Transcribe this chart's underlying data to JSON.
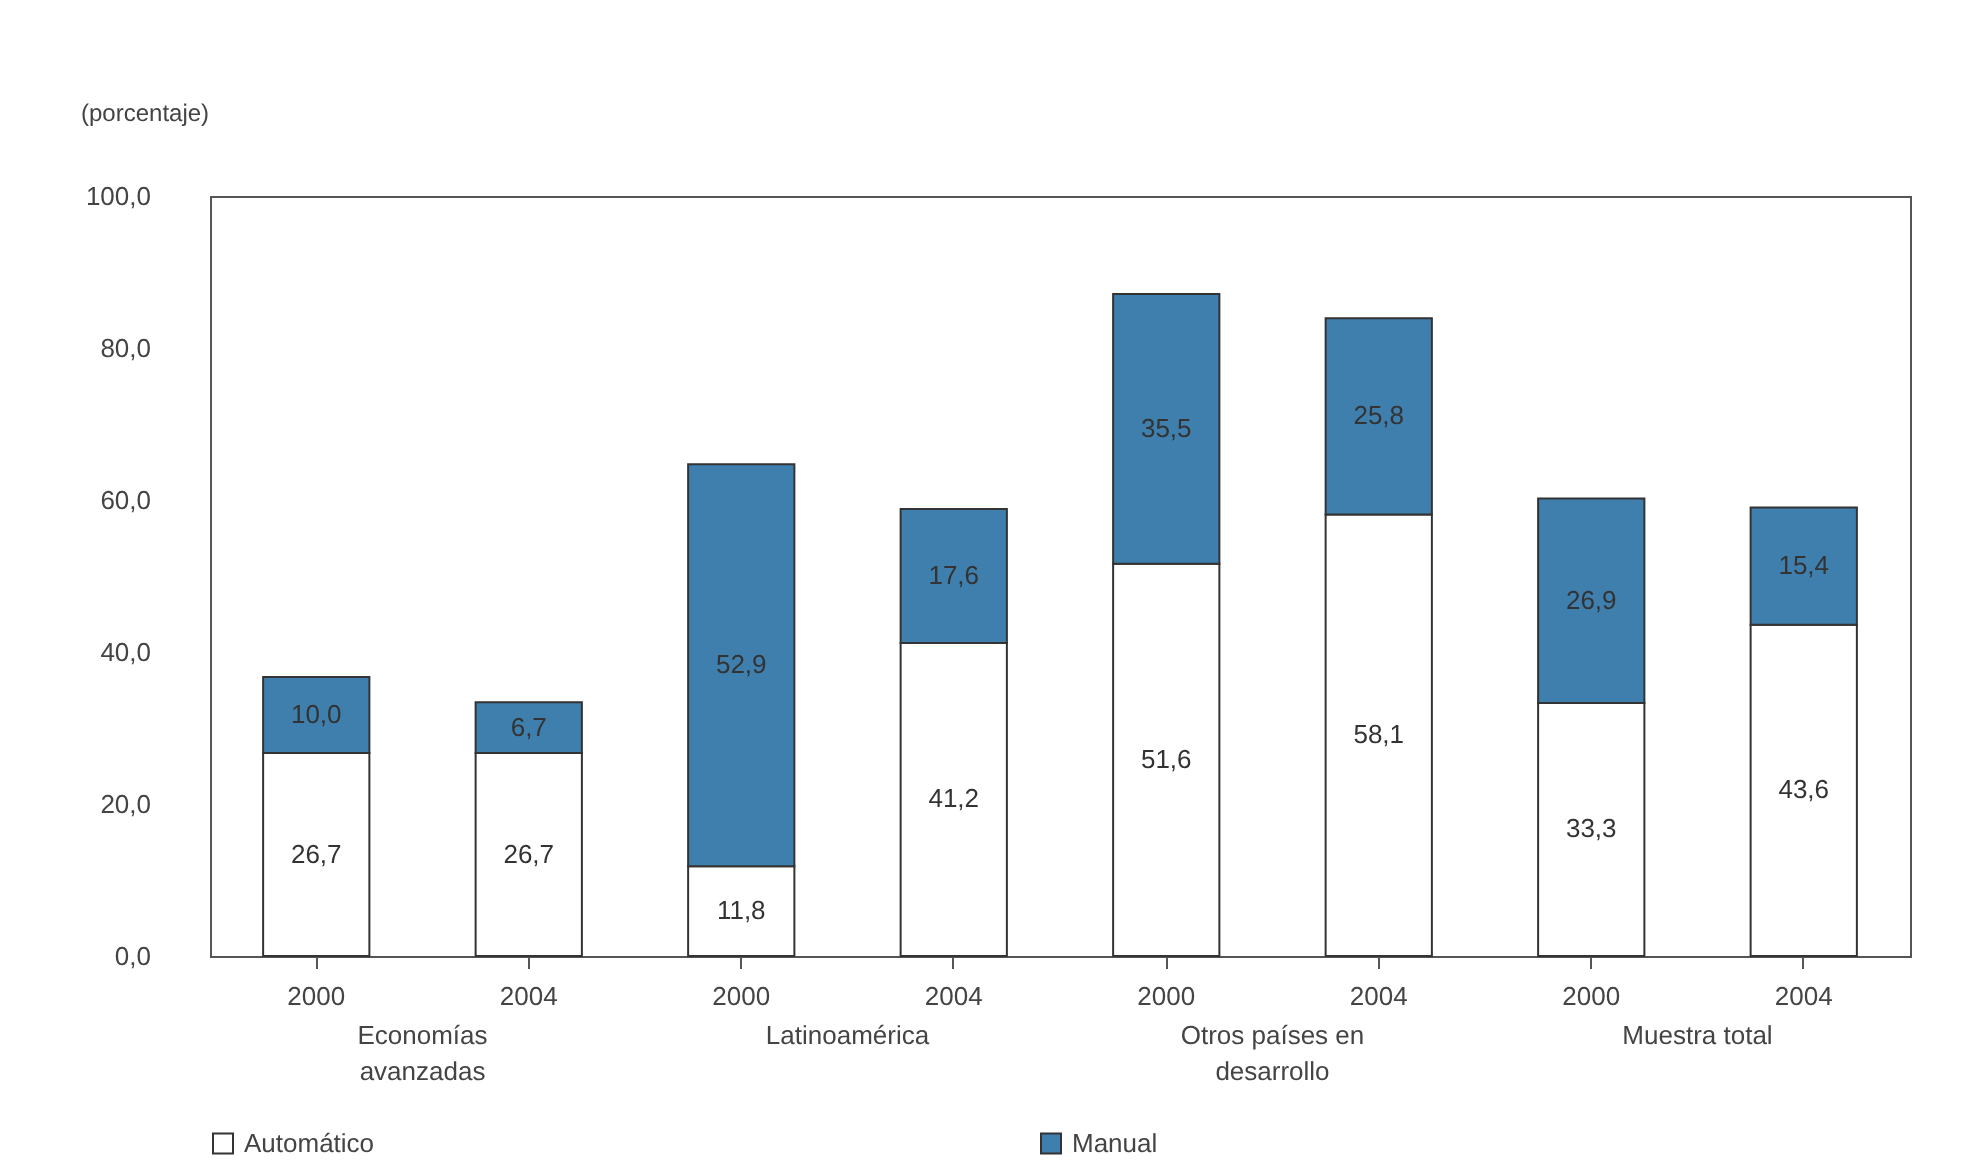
{
  "chart_data": {
    "type": "bar",
    "stacked": true,
    "ylabel": "(porcentaje)",
    "categories": [
      "2000",
      "2004",
      "2000",
      "2004",
      "2000",
      "2004",
      "2000",
      "2004"
    ],
    "series": [
      {
        "name": "Automático",
        "color": "#ffffff",
        "values": [
          26.7,
          26.7,
          11.8,
          41.2,
          51.6,
          58.1,
          33.3,
          43.6
        ],
        "value_labels": [
          "26,7",
          "26,7",
          "11,8",
          "41,2",
          "51,6",
          "58,1",
          "33,3",
          "43,6"
        ]
      },
      {
        "name": "Manual",
        "color": "#3f7fae",
        "values": [
          10.0,
          6.7,
          52.9,
          17.6,
          35.5,
          25.8,
          26.9,
          15.4
        ],
        "value_labels": [
          "10,0",
          "6,7",
          "52,9",
          "17,6",
          "35,5",
          "25,8",
          "26,9",
          "15,4"
        ]
      }
    ],
    "ylim": [
      0,
      100
    ],
    "yticks": [
      {
        "value": 0,
        "label": "0,0"
      },
      {
        "value": 20,
        "label": "20,0"
      },
      {
        "value": 40,
        "label": "40,0"
      },
      {
        "value": 60,
        "label": "60,0"
      },
      {
        "value": 80,
        "label": "80,0"
      },
      {
        "value": 100,
        "label": "100,0"
      }
    ],
    "legend": "bottom",
    "grid": false,
    "annotations": [
      "Economías avanzadas",
      "Latinoamérica",
      "Otros países en desarrollo",
      "Muestra total"
    ]
  }
}
